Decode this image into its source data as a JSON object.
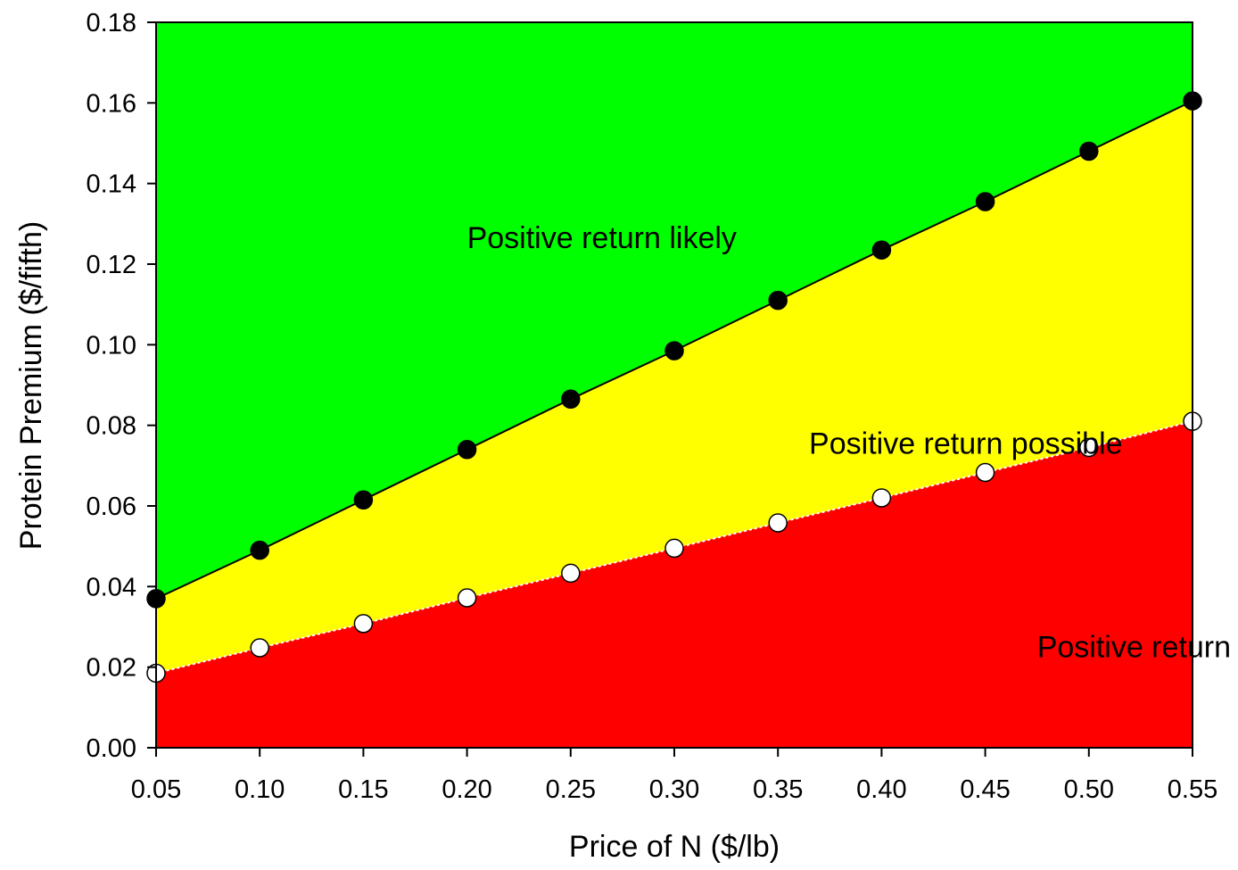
{
  "chart_data": {
    "type": "area",
    "xlabel": "Price of N ($/lb)",
    "ylabel": "Protein Premium ($/fifth)",
    "xlim": [
      0.05,
      0.55
    ],
    "ylim": [
      0.0,
      0.18
    ],
    "x_ticks": [
      "0.05",
      "0.10",
      "0.15",
      "0.20",
      "0.25",
      "0.30",
      "0.35",
      "0.40",
      "0.45",
      "0.50",
      "0.55"
    ],
    "y_ticks": [
      "0.00",
      "0.02",
      "0.04",
      "0.06",
      "0.08",
      "0.10",
      "0.12",
      "0.14",
      "0.16",
      "0.18"
    ],
    "x": [
      0.05,
      0.1,
      0.15,
      0.2,
      0.25,
      0.3,
      0.35,
      0.4,
      0.45,
      0.5,
      0.55
    ],
    "series": [
      {
        "marker": "filled-circle",
        "values": [
          0.037,
          0.049,
          0.0615,
          0.074,
          0.0865,
          0.0985,
          0.111,
          0.1235,
          0.1355,
          0.148,
          0.1605
        ]
      },
      {
        "marker": "open-circle",
        "values": [
          0.0185,
          0.0248,
          0.0308,
          0.0372,
          0.0433,
          0.0495,
          0.0558,
          0.062,
          0.0683,
          0.0745,
          0.081
        ]
      }
    ],
    "regions": [
      {
        "label": "Positive return likely",
        "color": "#00ff00",
        "label_x": 0.2,
        "label_y": 0.124
      },
      {
        "label": "Positive return possible",
        "color": "#ffff00",
        "label_x": 0.365,
        "label_y": 0.073
      },
      {
        "label": "Positive return unlikely",
        "color": "#ff0000",
        "label_x": 0.475,
        "label_y": 0.0225
      }
    ],
    "grid": false,
    "legend": "none"
  }
}
